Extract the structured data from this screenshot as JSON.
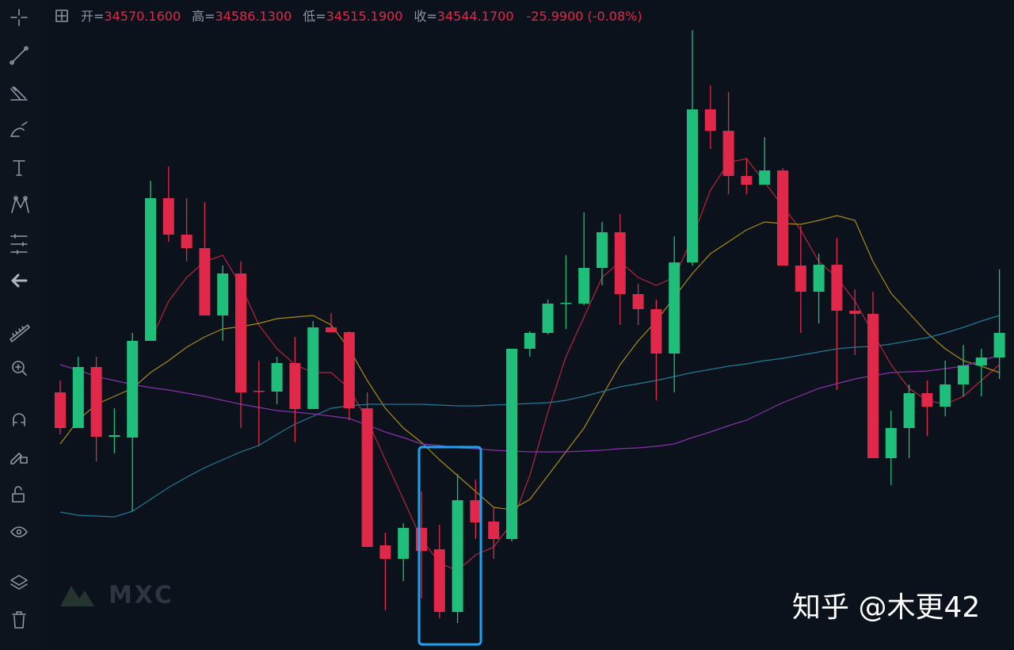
{
  "header": {
    "items": [
      {
        "label": "开=",
        "value": "34570.1600"
      },
      {
        "label": "高=",
        "value": "34586.1300"
      },
      {
        "label": "低=",
        "value": "34515.1900"
      },
      {
        "label": "收=",
        "value": "34544.1700"
      }
    ],
    "change": "-25.9900 (-0.08%)"
  },
  "watermark": {
    "brand": "MXC",
    "credit": "知乎 @木更42"
  },
  "chart_data": {
    "type": "candlestick",
    "ylim": [
      34346,
      34756
    ],
    "up_color": "#1fbf7b",
    "down_color": "#e0294a",
    "open": [
      34508.5,
      34486,
      34524.5,
      34480.5,
      34480,
      34541,
      34631,
      34608,
      34599.5,
      34557,
      34583.5,
      34509.5,
      34509,
      34527,
      34498,
      34549.5,
      34546.5,
      34498.5,
      34412,
      34403.5,
      34423,
      34409.5,
      34370,
      34440.5,
      34427,
      34416,
      34536,
      34546,
      34564.5,
      34564.5,
      34587,
      34609.5,
      34570.5,
      34561,
      34533,
      34590.5,
      34687,
      34673.5,
      34645,
      34639.5,
      34648.5,
      34588.5,
      34572,
      34589,
      34560,
      34558,
      34467,
      34486,
      34508,
      34499.5,
      34513.5,
      34525.5,
      34530.5
    ],
    "high": [
      34516,
      34531,
      34531,
      34498.5,
      34546,
      34642,
      34651,
      34631,
      34628.5,
      34588.5,
      34591,
      34528.5,
      34531,
      34543.5,
      34553.5,
      34558.5,
      34547,
      34508.5,
      34420,
      34426,
      34446,
      34425,
      34457,
      34453.5,
      34436,
      34536,
      34547,
      34567,
      34595,
      34622,
      34616,
      34621,
      34577,
      34567,
      34607,
      34737,
      34702,
      34698,
      34656,
      34669.5,
      34650,
      34613.5,
      34596,
      34606,
      34573.5,
      34572,
      34497,
      34513.5,
      34516,
      34528.5,
      34538.5,
      34536,
      34586
    ],
    "low": [
      34482,
      34486,
      34465,
      34470,
      34433.5,
      34541,
      34603.5,
      34591,
      34557,
      34541,
      34486,
      34475,
      34501,
      34477,
      34498,
      34546,
      34491,
      34411,
      34371,
      34389.5,
      34378.5,
      34366,
      34363,
      34416,
      34403.5,
      34414.5,
      34531,
      34545,
      34548.5,
      34563.5,
      34576,
      34551,
      34551,
      34503.5,
      34508.5,
      34588.5,
      34662,
      34633.5,
      34633.5,
      34639.5,
      34588.5,
      34546,
      34552,
      34510,
      34532,
      34467,
      34450,
      34467,
      34481,
      34493.5,
      34506,
      34506,
      34517
    ],
    "close": [
      34486,
      34524.5,
      34480.5,
      34481.5,
      34541,
      34631,
      34608,
      34599.5,
      34557,
      34583.5,
      34508.5,
      34509,
      34527,
      34498,
      34549.5,
      34546.5,
      34498.5,
      34411,
      34403.5,
      34423,
      34408.5,
      34370,
      34440.5,
      34426.5,
      34416,
      34536,
      34546,
      34564.5,
      34565,
      34587,
      34609.5,
      34570.5,
      34561,
      34533,
      34590.5,
      34687,
      34673.5,
      34645,
      34639.5,
      34648.5,
      34588.5,
      34572,
      34589,
      34560,
      34558,
      34467,
      34486,
      34508,
      34499.5,
      34513.5,
      34525.5,
      34530.5,
      34546
    ],
    "series": [
      {
        "color": "#b8243f",
        "values": [
          null,
          null,
          null,
          null,
          null,
          34541,
          34566,
          34581,
          34591,
          34595,
          34576,
          34551,
          34536,
          34526,
          34521,
          34521,
          34511,
          34491,
          34466,
          34441,
          34416,
          34401,
          34396,
          34406,
          34411,
          34426,
          34456,
          34496,
          34531,
          34556,
          34581,
          34591,
          34581,
          34576,
          34581,
          34606,
          34636,
          34653.5,
          34656,
          34641,
          34626,
          34611,
          34591,
          34581,
          34566,
          34546,
          34526,
          34511,
          34503.5,
          34501,
          34506,
          34516,
          34526
        ]
      },
      {
        "color": "#a88a16",
        "values": [
          34476,
          34491,
          34501,
          34506,
          34511,
          34521,
          34528.5,
          34537,
          34543.5,
          34548.5,
          34550,
          34552,
          34555,
          34556,
          34557,
          34551,
          34536,
          34516,
          34498.5,
          34486,
          34477,
          34466,
          34456,
          34446,
          34436,
          34434.5,
          34441,
          34456,
          34471,
          34486,
          34506,
          34526,
          34541,
          34553.5,
          34568.5,
          34583.5,
          34596,
          34603.5,
          34611,
          34616,
          34615,
          34614.5,
          34617,
          34620,
          34617,
          34591,
          34571,
          34558.5,
          34546,
          34536,
          34528.5,
          34525,
          34521
        ]
      },
      {
        "color": "#1f7a99",
        "values": [
          34433,
          34431,
          34430.5,
          34430,
          34433.5,
          34441,
          34448.5,
          34455,
          34461,
          34466,
          34471,
          34475,
          34482,
          34488.5,
          34493.5,
          34498.5,
          34500,
          34501,
          34501,
          34501,
          34501,
          34500.5,
          34500,
          34500,
          34500.5,
          34501,
          34501.5,
          34502,
          34503.5,
          34506,
          34509,
          34512,
          34514,
          34516,
          34518.5,
          34521,
          34523,
          34525,
          34526.5,
          34528.5,
          34530,
          34532,
          34534,
          34536,
          34537,
          34537.5,
          34539,
          34541,
          34543,
          34546,
          34549.5,
          34553.5,
          34557
        ]
      },
      {
        "color": "#8a2fae",
        "values": [
          34526,
          34522.5,
          34518.5,
          34516,
          34513.5,
          34511.5,
          34510,
          34508,
          34506,
          34503.5,
          34501,
          34499,
          34497,
          34496,
          34495,
          34493.5,
          34492,
          34488,
          34483.5,
          34480,
          34476,
          34475,
          34473.5,
          34473,
          34472,
          34471.5,
          34471,
          34471,
          34471,
          34471.5,
          34472,
          34473,
          34473.5,
          34474.5,
          34476,
          34480,
          34483.5,
          34487.5,
          34491,
          34496.5,
          34502,
          34506.5,
          34511,
          34514,
          34517,
          34519,
          34521,
          34521.5,
          34522,
          34523.5,
          34525,
          34528.5,
          34532
        ]
      }
    ]
  }
}
